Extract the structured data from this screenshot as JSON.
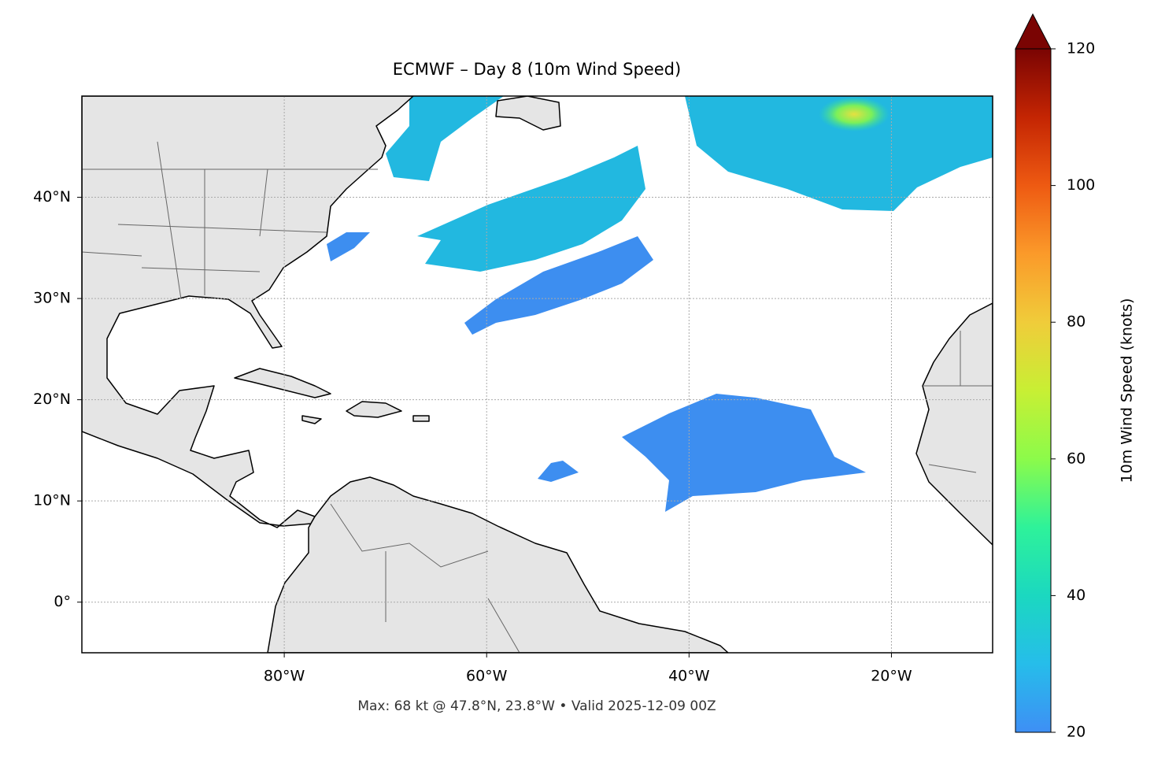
{
  "chart_data": {
    "type": "map",
    "title": "ECMWF – Day 8 (10m Wind Speed)",
    "xlim": [
      -100,
      -10
    ],
    "ylim": [
      -5,
      50
    ],
    "xticks": [
      {
        "value": -80,
        "label": "80°W"
      },
      {
        "value": -60,
        "label": "60°W"
      },
      {
        "value": -40,
        "label": "40°W"
      },
      {
        "value": -20,
        "label": "20°W"
      }
    ],
    "yticks": [
      {
        "value": 0,
        "label": "0°"
      },
      {
        "value": 10,
        "label": "10°N"
      },
      {
        "value": 20,
        "label": "20°N"
      },
      {
        "value": 30,
        "label": "30°N"
      },
      {
        "value": 40,
        "label": "40°N"
      }
    ],
    "grid": true,
    "colorbar": {
      "label": "10m Wind Speed (knots)",
      "lim": [
        20,
        120
      ],
      "ticks": [
        20,
        40,
        60,
        80,
        100,
        120
      ]
    },
    "footer": "Max: 68 kt @ 47.8°N, 23.8°W • Valid 2025-12-09 00Z"
  }
}
